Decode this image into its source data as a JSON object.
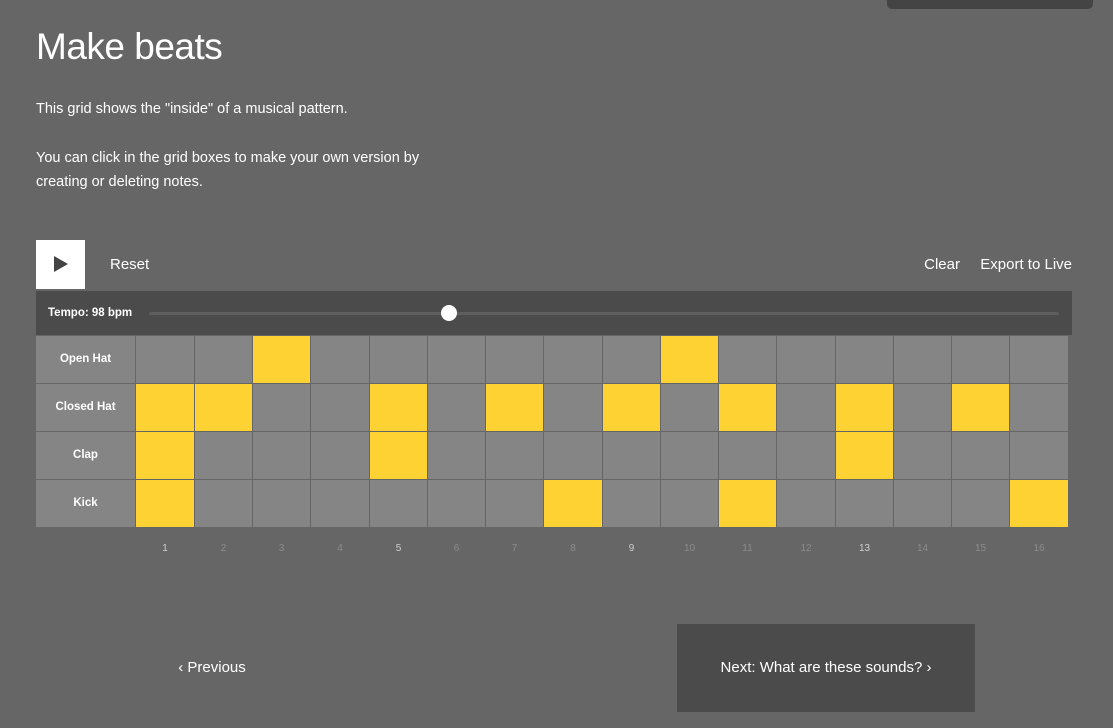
{
  "page": {
    "title": "Make beats",
    "intro_1": "This grid shows the \"inside\" of a musical pattern.",
    "intro_2": "You can click in the grid boxes to make your own version by creating or deleting notes."
  },
  "controls": {
    "play_icon": "play-icon",
    "reset_label": "Reset",
    "clear_label": "Clear",
    "export_label": "Export to Live"
  },
  "tempo": {
    "label": "Tempo: 98 bpm",
    "bpm": 98,
    "slider_fraction": 0.33
  },
  "sequencer": {
    "steps": [
      "1",
      "2",
      "3",
      "4",
      "5",
      "6",
      "7",
      "8",
      "9",
      "10",
      "11",
      "12",
      "13",
      "14",
      "15",
      "16"
    ],
    "highlighted_steps": [
      1,
      5,
      9,
      13
    ],
    "rows": [
      {
        "label": "Open Hat",
        "active_steps": [
          3,
          10
        ]
      },
      {
        "label": "Closed Hat",
        "active_steps": [
          1,
          2,
          5,
          7,
          9,
          11,
          13,
          15
        ]
      },
      {
        "label": "Clap",
        "active_steps": [
          1,
          5,
          13
        ]
      },
      {
        "label": "Kick",
        "active_steps": [
          1,
          8,
          11,
          16
        ]
      }
    ]
  },
  "navigation": {
    "previous_label": "‹ Previous",
    "next_label": "Next: What are these sounds? ›"
  },
  "colors": {
    "background": "#666666",
    "cell_off": "#858585",
    "cell_on": "#ffd233",
    "panel_dark": "#4b4b4b",
    "text": "#ffffff"
  }
}
